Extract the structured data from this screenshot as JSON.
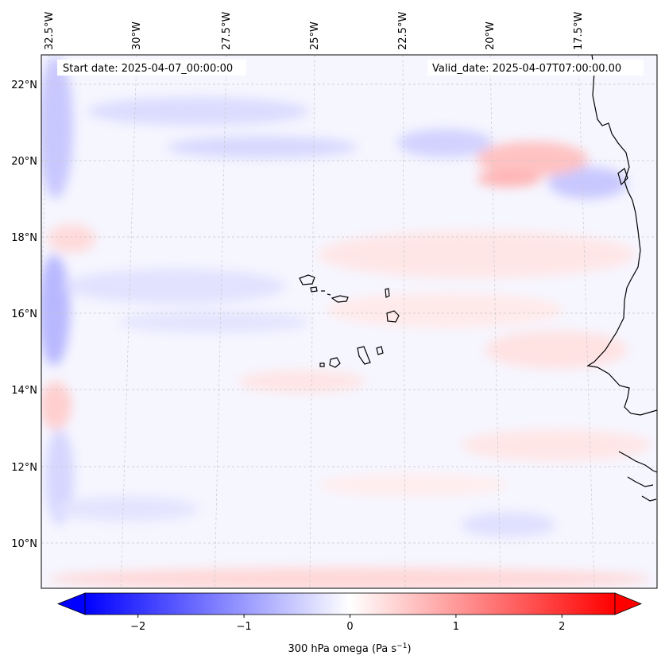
{
  "map": {
    "start_date": "Start date: 2025-04-07_00:00:00",
    "valid_date": "Valid_date: 2025-04-07T07:00:00.00",
    "lon_labels": [
      "32.5°W",
      "30°W",
      "27.5°W",
      "25°W",
      "22.5°W",
      "20°W",
      "17.5°W"
    ],
    "lat_labels": [
      "22°N",
      "20°N",
      "18°N",
      "16°N",
      "14°N",
      "12°N",
      "10°N"
    ],
    "gridlines": true,
    "colors": {
      "negative": "#0000ff",
      "zero": "#ffffff",
      "positive": "#ff0000",
      "coastline": "#000000"
    }
  },
  "colorbar": {
    "label_prefix": "300 hPa omega (Pa s",
    "label_exp": "−1",
    "label_suffix": ")",
    "ticks": [
      "−2",
      "−1",
      "0",
      "1",
      "2"
    ],
    "tick_values": [
      -2,
      -1,
      0,
      1,
      2
    ],
    "range": [
      -2.5,
      2.5
    ],
    "extend": "both",
    "cmap": "bwr"
  }
}
